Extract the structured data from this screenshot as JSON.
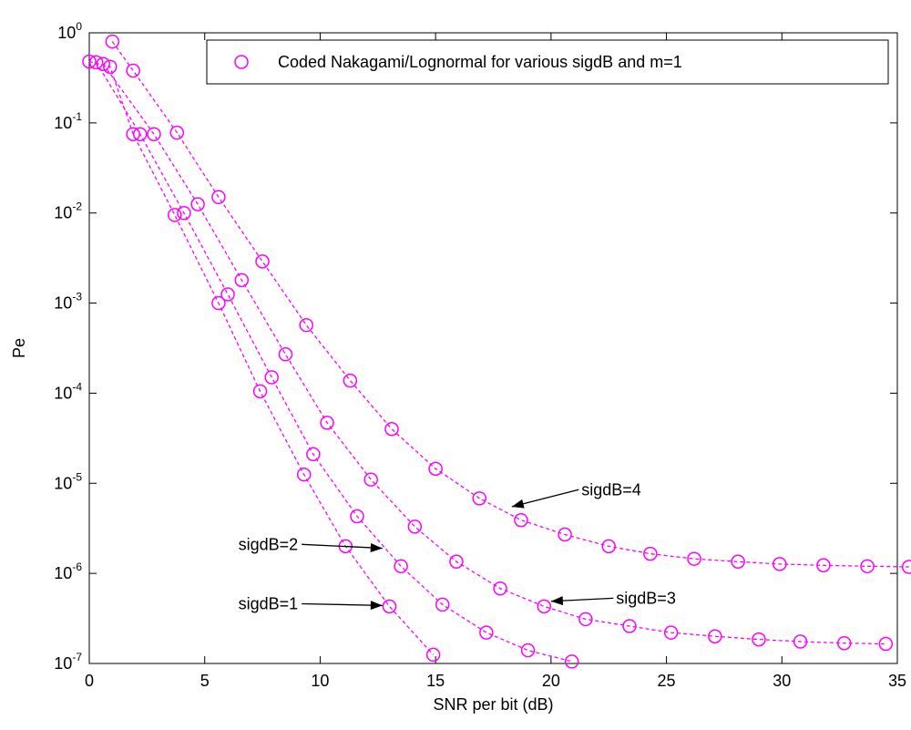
{
  "chart_data": {
    "type": "scatter",
    "xlabel": "SNR per bit (dB)",
    "ylabel": "Pe",
    "xlim": [
      0,
      35
    ],
    "ylim": [
      1e-07,
      1
    ],
    "yscale": "log",
    "x_ticks": [
      0,
      5,
      10,
      15,
      20,
      25,
      30,
      35
    ],
    "y_tick_exponents": [
      0,
      -1,
      -2,
      -3,
      -4,
      -5,
      -6,
      -7
    ],
    "grid": false,
    "legend": {
      "position": "top-right",
      "label": "Coded Nakagami/Lognormal for various sigdB and m=1"
    },
    "marker_color": "#ff00ff",
    "series": [
      {
        "x": [
          0.0,
          0.9,
          1.9,
          3.7,
          5.6,
          7.4,
          9.3,
          11.1,
          13.0,
          14.9
        ],
        "y": [
          0.48,
          0.42,
          0.075,
          0.0095,
          0.001,
          0.000105,
          1.25e-05,
          2e-06,
          4.3e-07,
          1.25e-07
        ]
      },
      {
        "x": [
          0.3,
          2.2,
          4.1,
          6.0,
          7.9,
          9.7,
          11.6,
          13.5,
          15.3,
          17.2,
          19.0,
          20.9
        ],
        "y": [
          0.47,
          0.075,
          0.01,
          0.00125,
          0.00015,
          2.1e-05,
          4.3e-06,
          1.2e-06,
          4.5e-07,
          2.2e-07,
          1.4e-07,
          1.05e-07
        ]
      },
      {
        "x": [
          0.6,
          2.8,
          4.7,
          6.6,
          8.5,
          10.3,
          12.2,
          14.1,
          15.9,
          17.8,
          19.7,
          21.5,
          23.4,
          25.2,
          27.1,
          29.0,
          30.8,
          32.7,
          34.5
        ],
        "y": [
          0.45,
          0.075,
          0.0125,
          0.0018,
          0.00027,
          4.7e-05,
          1.1e-05,
          3.3e-06,
          1.35e-06,
          6.8e-07,
          4.3e-07,
          3.1e-07,
          2.6e-07,
          2.2e-07,
          2e-07,
          1.85e-07,
          1.75e-07,
          1.68e-07,
          1.65e-07
        ]
      },
      {
        "x": [
          1.0,
          1.9,
          3.8,
          5.6,
          7.5,
          9.4,
          11.3,
          13.1,
          15.0,
          16.9,
          18.7,
          20.6,
          22.5,
          24.3,
          26.2,
          28.1,
          29.9,
          31.8,
          33.7,
          35.5
        ],
        "y": [
          0.8,
          0.38,
          0.078,
          0.015,
          0.0029,
          0.00057,
          0.000138,
          4e-05,
          1.45e-05,
          6.8e-06,
          3.9e-06,
          2.7e-06,
          2e-06,
          1.65e-06,
          1.45e-06,
          1.35e-06,
          1.27e-06,
          1.23e-06,
          1.2e-06,
          1.18e-06
        ]
      }
    ],
    "annotations": [
      {
        "text": "sigdB=4",
        "tail": [
          21.2,
          8.5e-06
        ],
        "head": [
          18.3,
          5.5e-06
        ]
      },
      {
        "text": "sigdB=3",
        "tail": [
          22.7,
          5.3e-07
        ],
        "head": [
          20.0,
          4.9e-07
        ]
      },
      {
        "text": "sigdB=2",
        "tail": [
          9.2,
          2.1e-06
        ],
        "head": [
          12.7,
          1.9e-06
        ]
      },
      {
        "text": "sigdB=1",
        "tail": [
          9.2,
          4.6e-07
        ],
        "head": [
          12.7,
          4.4e-07
        ]
      }
    ]
  }
}
